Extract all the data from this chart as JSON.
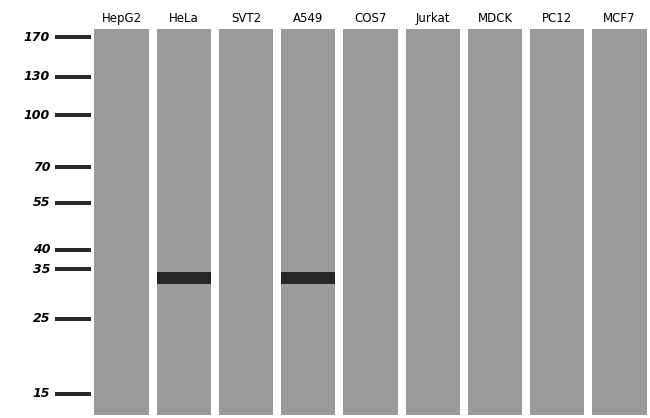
{
  "lanes": [
    "HepG2",
    "HeLa",
    "SVT2",
    "A549",
    "COS7",
    "Jurkat",
    "MDCK",
    "PC12",
    "MCF7"
  ],
  "mw_markers": [
    170,
    130,
    100,
    70,
    55,
    40,
    35,
    25,
    15
  ],
  "band_positions": {
    "HeLa": 33,
    "A549": 33
  },
  "bg_color": "#9a9a9a",
  "band_color": "#1a1a1a",
  "marker_line_color": "#111111",
  "fig_bg": "#ffffff",
  "label_fontsize": 8.5,
  "marker_fontsize": 9
}
